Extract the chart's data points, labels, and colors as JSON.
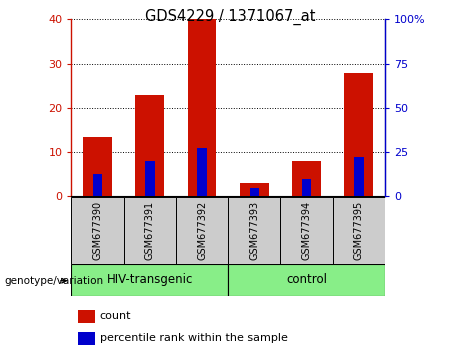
{
  "title": "GDS4229 / 1371067_at",
  "samples": [
    "GSM677390",
    "GSM677391",
    "GSM677392",
    "GSM677393",
    "GSM677394",
    "GSM677395"
  ],
  "count_values": [
    13.5,
    23,
    40,
    3,
    8,
    28
  ],
  "percentile_values": [
    5,
    8,
    11,
    2,
    4,
    9
  ],
  "left_ylim": [
    0,
    40
  ],
  "left_yticks": [
    0,
    10,
    20,
    30,
    40
  ],
  "left_yticklabels": [
    "0",
    "10",
    "20",
    "30",
    "40"
  ],
  "right_yticklabels": [
    "0",
    "25",
    "50",
    "75",
    "100%"
  ],
  "bar_color_red": "#cc1100",
  "bar_color_blue": "#0000cc",
  "bar_width": 0.55,
  "blue_bar_width": 0.18,
  "group1_label": "HIV-transgenic",
  "group2_label": "control",
  "group_bg_color": "#88ee88",
  "sample_bg_color": "#cccccc",
  "legend_count_label": "count",
  "legend_percentile_label": "percentile rank within the sample",
  "genotype_label": "genotype/variation",
  "left_axis_color": "#cc1100",
  "right_axis_color": "#0000cc"
}
